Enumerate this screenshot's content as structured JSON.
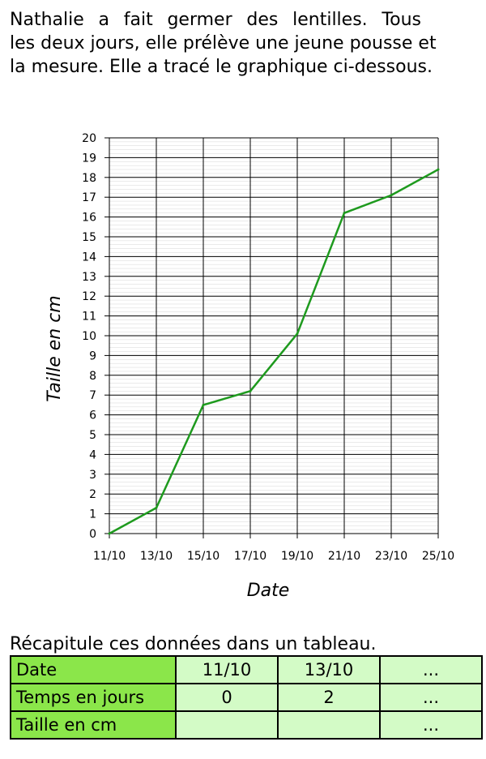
{
  "intro": {
    "line1": "Nathalie a fait germer des lentilles. Tous",
    "line2": "les deux jours, elle prélève une jeune pousse et",
    "line3": "la mesure. Elle a tracé le graphique ci-dessous."
  },
  "chart_data": {
    "type": "line",
    "title": "",
    "xlabel": "Date",
    "ylabel": "Taille en cm",
    "categories": [
      "11/10",
      "13/10",
      "15/10",
      "17/10",
      "19/10",
      "21/10",
      "23/10",
      "25/10"
    ],
    "series": [
      {
        "values": [
          0,
          1.3,
          6.5,
          7.2,
          10.1,
          16.2,
          17.1,
          18.4
        ]
      }
    ],
    "ylim": [
      0,
      20
    ],
    "yticks": [
      0,
      1,
      2,
      3,
      4,
      5,
      6,
      7,
      8,
      9,
      10,
      11,
      12,
      13,
      14,
      15,
      16,
      17,
      18,
      19,
      20
    ],
    "grid": true,
    "line_color": "#1e9a1e"
  },
  "instruction": "Récapitule ces données dans un tableau.",
  "table": {
    "rows": [
      {
        "label": "Date",
        "cells": [
          "11/10",
          "13/10",
          "..."
        ]
      },
      {
        "label": "Temps en jours",
        "cells": [
          "0",
          "2",
          "..."
        ]
      },
      {
        "label": "Taille en cm",
        "cells": [
          "",
          "",
          "..."
        ]
      }
    ]
  },
  "colors": {
    "header_bg": "#8be64a",
    "cell_bg": "#d3fbc6"
  }
}
